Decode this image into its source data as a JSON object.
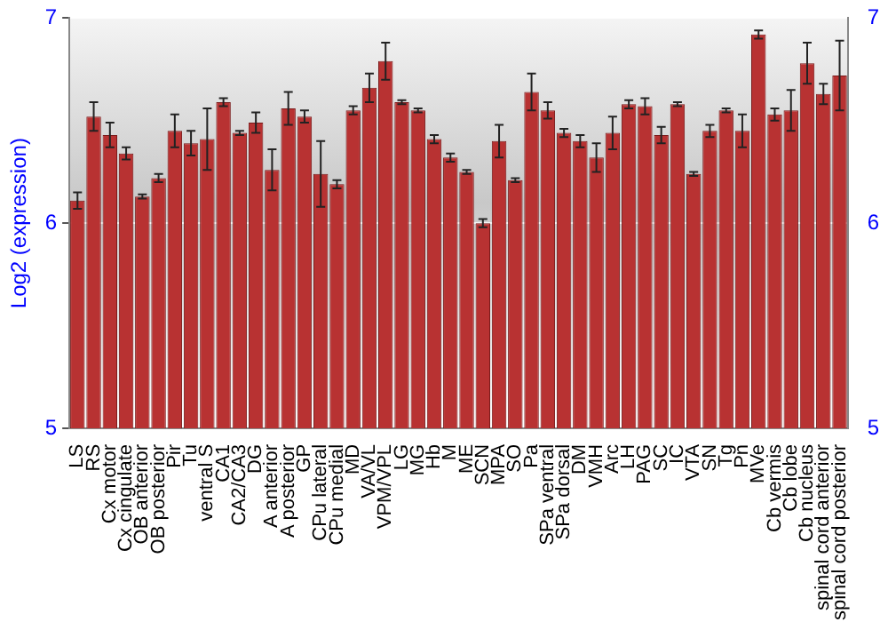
{
  "chart_data": {
    "type": "bar",
    "ylabel": "Log2 (expression)",
    "categories": [
      "LS",
      "RS",
      "Cx motor",
      "Cx cingulate",
      "OB anterior",
      "OB posterior",
      "Pir",
      "Tu",
      "ventral S",
      "CA1",
      "CA2/CA3",
      "DG",
      "A anterior",
      "A posterior",
      "GP",
      "CPu lateral",
      "CPu medial",
      "MD",
      "VA/VL",
      "VPM/VPL",
      "LG",
      "MG",
      "Hb",
      "M",
      "ME",
      "SCN",
      "MPA",
      "SO",
      "Pa",
      "SPa ventral",
      "SPa dorsal",
      "DM",
      "VMH",
      "Arc",
      "LH",
      "PAG",
      "SC",
      "IC",
      "VTA",
      "SN",
      "Tg",
      "Pn",
      "MVe",
      "Cb vermis",
      "Cb lobe",
      "Cb nucleus",
      "spinal cord anterior",
      "spinal cord posterior"
    ],
    "values": [
      6.11,
      6.52,
      6.43,
      6.34,
      6.13,
      6.22,
      6.45,
      6.39,
      6.41,
      6.59,
      6.44,
      6.49,
      6.26,
      6.56,
      6.52,
      6.24,
      6.19,
      6.55,
      6.66,
      6.79,
      6.59,
      6.55,
      6.41,
      6.32,
      6.25,
      6.0,
      6.4,
      6.21,
      6.64,
      6.55,
      6.44,
      6.4,
      6.32,
      6.44,
      6.58,
      6.57,
      6.43,
      6.58,
      6.24,
      6.45,
      6.55,
      6.45,
      6.92,
      6.53,
      6.55,
      6.78,
      6.63,
      6.72
    ],
    "errors": [
      0.04,
      0.07,
      0.06,
      0.03,
      0.01,
      0.02,
      0.08,
      0.06,
      0.15,
      0.02,
      0.01,
      0.05,
      0.1,
      0.08,
      0.03,
      0.16,
      0.02,
      0.02,
      0.07,
      0.09,
      0.01,
      0.01,
      0.02,
      0.02,
      0.01,
      0.02,
      0.08,
      0.01,
      0.09,
      0.04,
      0.02,
      0.03,
      0.07,
      0.08,
      0.02,
      0.04,
      0.04,
      0.01,
      0.01,
      0.03,
      0.01,
      0.08,
      0.02,
      0.03,
      0.1,
      0.1,
      0.05,
      0.17
    ],
    "color": "#b83232",
    "ylim": [
      5,
      7
    ],
    "yticks": [
      5,
      6,
      7
    ],
    "y2lim": [
      5,
      7
    ],
    "y2ticks": [
      5,
      6,
      7
    ],
    "grid": "y",
    "legend": false
  }
}
